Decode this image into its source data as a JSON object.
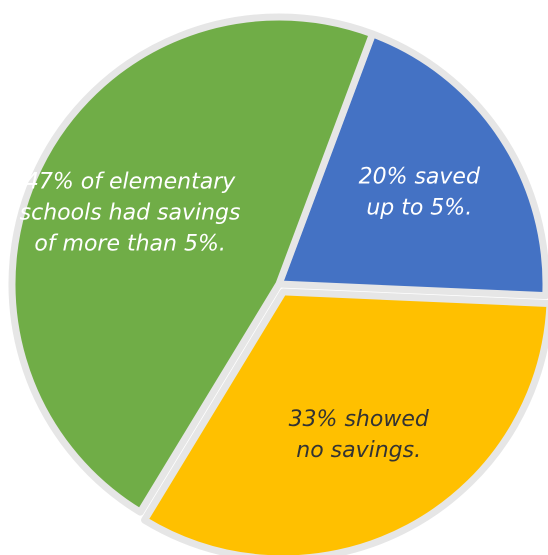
{
  "chart_data": {
    "type": "pie",
    "slices": [
      {
        "label": "20% saved up to 5%.",
        "value": 20,
        "color": "#4472C4",
        "lines": [
          "20% saved",
          "up to 5%."
        ],
        "text_color": "#ffffff"
      },
      {
        "label": "33% showed no savings.",
        "value": 33,
        "color": "#FFC000",
        "lines": [
          "33% showed",
          "no savings."
        ],
        "text_color": "#333333"
      },
      {
        "label": "47% of elementary schools had savings of more than 5%.",
        "value": 47,
        "color": "#70AD47",
        "lines": [
          "47% of elementary",
          "schools had savings",
          "of more than 5%."
        ],
        "text_color": "#ffffff"
      }
    ],
    "legend": "none"
  }
}
